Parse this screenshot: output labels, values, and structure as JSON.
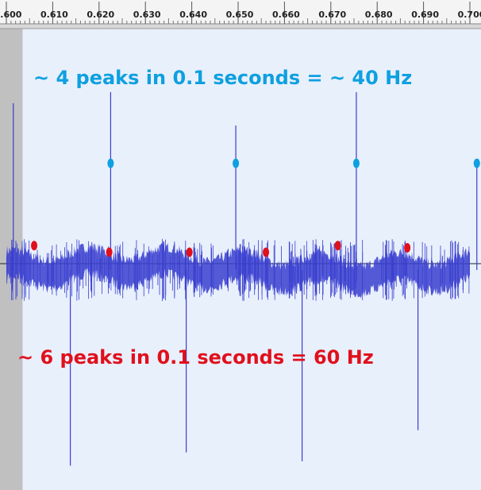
{
  "chart_data": {
    "type": "line",
    "title": "",
    "xlabel": "",
    "ylabel": "",
    "xlim": [
      0.6,
      0.7
    ],
    "ylim": [
      -1,
      1
    ],
    "x_ticks": [
      "0.600",
      "0.610",
      "0.620",
      "0.630",
      "0.640",
      "0.650",
      "0.660",
      "0.670",
      "0.680",
      "0.690",
      "0.700"
    ],
    "grid": false,
    "background_selection": {
      "x_start": 0.6035,
      "x_end": 0.7035,
      "color": "#e8f0fc"
    },
    "waveform_color": "#3a3fcf",
    "peaks_up": [
      0.6015,
      0.6225,
      0.6495,
      0.6755,
      0.7015
    ],
    "peaks_up_heights": [
      0.75,
      0.8,
      0.65,
      0.8,
      0.5
    ],
    "peaks_down": [
      0.6138,
      0.6388,
      0.6638,
      0.6888
    ],
    "peaks_down_depths": [
      -0.88,
      -0.82,
      -0.86,
      -0.72
    ],
    "series": [
      {
        "name": "",
        "color": "#0ea0e0",
        "marker_x": [
          0.6225,
          0.6495,
          0.6755,
          0.7015
        ],
        "marker_y": [
          0.48,
          0.48,
          0.48,
          0.48
        ]
      },
      {
        "name": "",
        "color": "#e0101c",
        "marker_x": [
          0.606,
          0.6222,
          0.6395,
          0.656,
          0.6715,
          0.6865
        ],
        "marker_y": [
          0.11,
          0.08,
          0.08,
          0.08,
          0.11,
          0.1
        ]
      }
    ],
    "annotations": [
      {
        "text": "~ 4 peaks in 0.1 seconds = ~ 40 Hz",
        "color": "#0ea0e0"
      },
      {
        "text": "~ 6 peaks in 0.1 seconds = 60 Hz",
        "color": "#e0101c"
      }
    ]
  }
}
